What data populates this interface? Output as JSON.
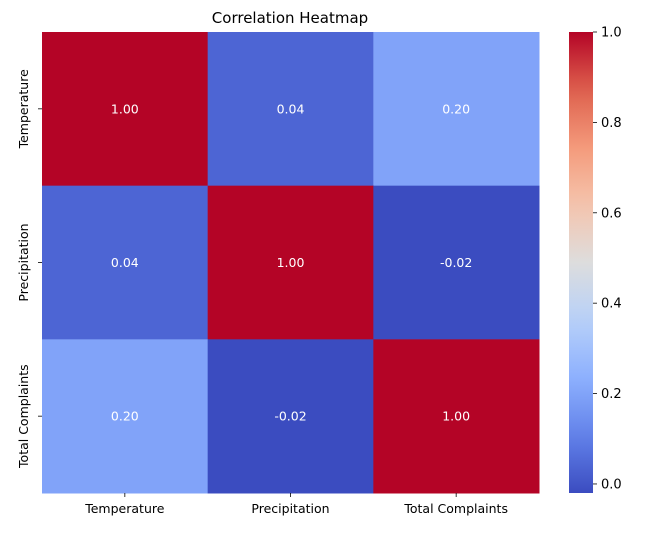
{
  "chart_data": {
    "type": "heatmap",
    "title": "Correlation Heatmap",
    "x_labels": [
      "Temperature",
      "Precipitation",
      "Total Complaints"
    ],
    "y_labels": [
      "Temperature",
      "Precipitation",
      "Total Complaints"
    ],
    "values": [
      [
        1.0,
        0.04,
        0.2
      ],
      [
        0.04,
        1.0,
        -0.02
      ],
      [
        0.2,
        -0.02,
        1.0
      ]
    ],
    "annotations": [
      [
        "1.00",
        "0.04",
        "0.20"
      ],
      [
        "0.04",
        "1.00",
        "-0.02"
      ],
      [
        "0.20",
        "-0.02",
        "1.00"
      ]
    ],
    "colormap": "coolwarm",
    "vmin": -0.02,
    "vmax": 1.0,
    "colorbar": {
      "ticks": [
        0.0,
        0.2,
        0.4,
        0.6,
        0.8,
        1.0
      ],
      "tick_labels": [
        "0.0",
        "0.2",
        "0.4",
        "0.6",
        "0.8",
        "1.0"
      ]
    },
    "grid": false
  }
}
